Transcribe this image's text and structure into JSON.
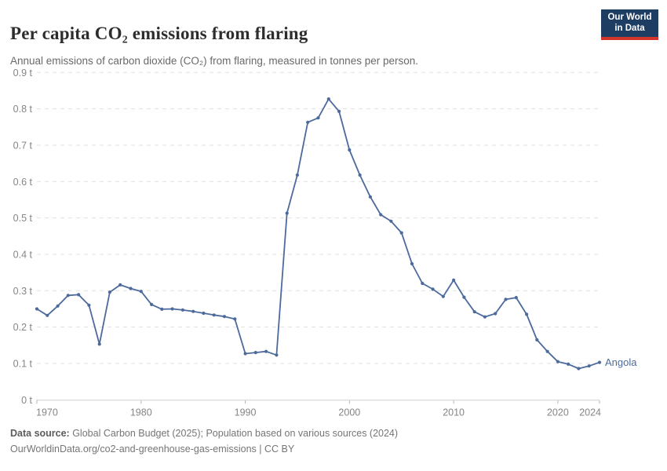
{
  "header": {
    "title": "Per capita CO₂ emissions from flaring",
    "subtitle": "Annual emissions of carbon dioxide (CO₂) from flaring, measured in tonnes per person."
  },
  "logo": {
    "line1": "Our World",
    "line2": "in Data",
    "bg_color": "#1d3d63",
    "accent_color": "#d1352b"
  },
  "chart_data": {
    "type": "line",
    "title": "Per capita CO₂ emissions from flaring",
    "entity": "Angola",
    "end_label": "Angola",
    "unit": "t",
    "line_color": "#4C6A9C",
    "grid": true,
    "xlim": [
      1970,
      2024
    ],
    "ylim": [
      0,
      0.9
    ],
    "x": [
      1970,
      1971,
      1972,
      1973,
      1974,
      1975,
      1976,
      1977,
      1978,
      1979,
      1980,
      1981,
      1982,
      1983,
      1984,
      1985,
      1986,
      1987,
      1988,
      1989,
      1990,
      1991,
      1992,
      1993,
      1994,
      1995,
      1996,
      1997,
      1998,
      1999,
      2000,
      2001,
      2002,
      2003,
      2004,
      2005,
      2006,
      2007,
      2008,
      2009,
      2010,
      2011,
      2012,
      2013,
      2014,
      2015,
      2016,
      2017,
      2018,
      2019,
      2020,
      2021,
      2022,
      2023,
      2024
    ],
    "values": [
      0.25,
      0.232,
      0.258,
      0.287,
      0.289,
      0.26,
      0.153,
      0.296,
      0.316,
      0.306,
      0.298,
      0.262,
      0.249,
      0.25,
      0.247,
      0.243,
      0.238,
      0.233,
      0.229,
      0.222,
      0.127,
      0.13,
      0.133,
      0.123,
      0.513,
      0.618,
      0.763,
      0.775,
      0.827,
      0.793,
      0.687,
      0.618,
      0.558,
      0.509,
      0.491,
      0.459,
      0.374,
      0.32,
      0.304,
      0.284,
      0.329,
      0.282,
      0.242,
      0.228,
      0.237,
      0.276,
      0.281,
      0.235,
      0.165,
      0.133,
      0.105,
      0.098,
      0.086,
      0.093,
      0.103
    ],
    "y_ticks": [
      {
        "value": 0.0,
        "label": "0 t"
      },
      {
        "value": 0.1,
        "label": "0.1 t"
      },
      {
        "value": 0.2,
        "label": "0.2 t"
      },
      {
        "value": 0.3,
        "label": "0.3 t"
      },
      {
        "value": 0.4,
        "label": "0.4 t"
      },
      {
        "value": 0.5,
        "label": "0.5 t"
      },
      {
        "value": 0.6,
        "label": "0.6 t"
      },
      {
        "value": 0.7,
        "label": "0.7 t"
      },
      {
        "value": 0.8,
        "label": "0.8 t"
      },
      {
        "value": 0.9,
        "label": "0.9 t"
      }
    ],
    "x_ticks": [
      {
        "value": 1970,
        "label": "1970"
      },
      {
        "value": 1980,
        "label": "1980"
      },
      {
        "value": 1990,
        "label": "1990"
      },
      {
        "value": 2000,
        "label": "2000"
      },
      {
        "value": 2010,
        "label": "2010"
      },
      {
        "value": 2020,
        "label": "2020"
      },
      {
        "value": 2024,
        "label": "2024"
      }
    ]
  },
  "footer": {
    "source_label": "Data source:",
    "source_text": " Global Carbon Budget (2025); Population based on various sources (2024)",
    "url": "OurWorldinData.org/co2-and-greenhouse-gas-emissions",
    "separator": " | ",
    "license": "CC BY"
  }
}
